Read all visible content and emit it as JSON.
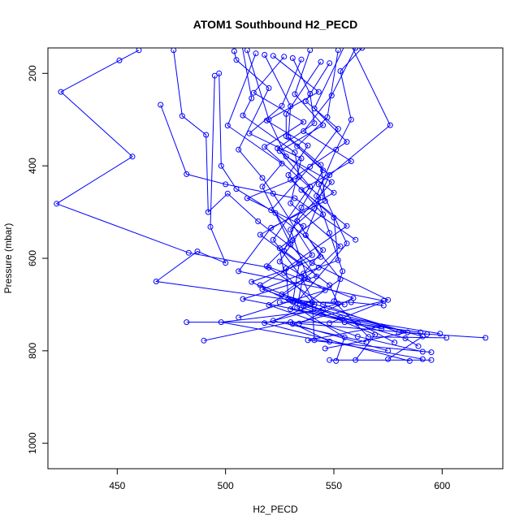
{
  "chart_data": {
    "type": "line",
    "title": "ATOM1 Southbound H2_PECD",
    "xlabel": "H2_PECD",
    "ylabel": "Pressure (mbar)",
    "xlim": [
      418,
      628
    ],
    "ylim": [
      1055,
      145
    ],
    "y_reversed": true,
    "x_ticks": [
      450,
      500,
      550,
      600
    ],
    "y_ticks": [
      200,
      400,
      600,
      800,
      1000
    ],
    "series_color": "#0000ff",
    "marker": "open-circle",
    "series": [
      {
        "name": "",
        "points": [
          [
            460,
            150
          ],
          [
            451,
            172
          ],
          [
            424,
            240
          ],
          [
            457,
            380
          ],
          [
            422,
            482
          ],
          [
            483,
            588
          ],
          [
            520,
            620
          ],
          [
            545,
            700
          ],
          [
            580,
            760
          ],
          [
            620,
            772
          ]
        ]
      },
      {
        "name": "",
        "points": [
          [
            470,
            268
          ],
          [
            482,
            418
          ],
          [
            500,
            440
          ],
          [
            532,
            470
          ],
          [
            560,
            560
          ]
        ]
      },
      {
        "name": "",
        "points": [
          [
            476,
            150
          ],
          [
            480,
            292
          ],
          [
            491,
            333
          ],
          [
            492,
            500
          ],
          [
            501,
            460
          ],
          [
            515,
            520
          ],
          [
            540,
            610
          ],
          [
            575,
            690
          ],
          [
            548,
            740
          ]
        ]
      },
      {
        "name": "",
        "points": [
          [
            495,
            205
          ],
          [
            493,
            532
          ],
          [
            500,
            610
          ],
          [
            487,
            585
          ],
          [
            468,
            650
          ],
          [
            530,
            690
          ],
          [
            555,
            700
          ]
        ]
      },
      {
        "name": "",
        "points": [
          [
            497,
            200
          ],
          [
            498,
            400
          ],
          [
            505,
            450
          ],
          [
            523,
            502
          ],
          [
            531,
            561
          ],
          [
            519,
            617
          ],
          [
            559,
            686
          ],
          [
            534,
            741
          ],
          [
            593,
            764
          ]
        ]
      },
      {
        "name": "",
        "points": [
          [
            504,
            152
          ],
          [
            505,
            171
          ],
          [
            520,
            232
          ],
          [
            506,
            365
          ],
          [
            517,
            426
          ],
          [
            522,
            460
          ],
          [
            540,
            593
          ],
          [
            516,
            658
          ],
          [
            553,
            728
          ],
          [
            599,
            763
          ]
        ]
      },
      {
        "name": "",
        "points": [
          [
            507,
            123
          ],
          [
            512,
            254
          ],
          [
            508,
            291
          ],
          [
            532,
            371
          ],
          [
            534,
            424
          ],
          [
            510,
            470
          ],
          [
            536,
            530
          ],
          [
            525,
            607
          ],
          [
            546,
            669
          ],
          [
            506,
            728
          ]
        ]
      },
      {
        "name": "",
        "points": [
          [
            510,
            150
          ],
          [
            520,
            300
          ],
          [
            528,
            380
          ],
          [
            549,
            435
          ],
          [
            533,
            519
          ],
          [
            544,
            597
          ],
          [
            512,
            651
          ],
          [
            535,
            707
          ],
          [
            583,
            773
          ],
          [
            589,
            790
          ]
        ]
      },
      {
        "name": "",
        "points": [
          [
            514,
            157
          ],
          [
            501,
            313
          ],
          [
            526,
            395
          ],
          [
            517,
            445
          ],
          [
            530,
            570
          ],
          [
            542,
            639
          ],
          [
            508,
            688
          ],
          [
            572,
            747
          ],
          [
            538,
            777
          ],
          [
            595,
            803
          ]
        ]
      },
      {
        "name": "",
        "points": [
          [
            518,
            160
          ],
          [
            530,
            271
          ],
          [
            529,
            338
          ],
          [
            544,
            398
          ],
          [
            546,
            476
          ],
          [
            521,
            534
          ],
          [
            506,
            628
          ],
          [
            573,
            692
          ],
          [
            531,
            742
          ],
          [
            575,
            800
          ]
        ]
      },
      {
        "name": "",
        "points": [
          [
            522,
            162
          ],
          [
            543,
            240
          ],
          [
            519,
            302
          ],
          [
            538,
            356
          ],
          [
            529,
            420
          ],
          [
            545,
            505
          ],
          [
            525,
            578
          ],
          [
            527,
            632
          ],
          [
            540,
            695
          ],
          [
            541,
            777
          ]
        ]
      },
      {
        "name": "",
        "points": [
          [
            527,
            164
          ],
          [
            513,
            242
          ],
          [
            536,
            305
          ],
          [
            518,
            359
          ],
          [
            544,
            468
          ],
          [
            537,
            550
          ],
          [
            553,
            645
          ],
          [
            536,
            702
          ],
          [
            569,
            765
          ],
          [
            560,
            820
          ]
        ]
      },
      {
        "name": "",
        "points": [
          [
            531,
            167
          ],
          [
            539,
            244
          ],
          [
            541,
            308
          ],
          [
            524,
            362
          ],
          [
            539,
            445
          ],
          [
            522,
            560
          ],
          [
            535,
            640
          ],
          [
            541,
            700
          ],
          [
            522,
            735
          ],
          [
            565,
            781
          ]
        ]
      },
      {
        "name": "",
        "points": [
          [
            535,
            170
          ],
          [
            526,
            270
          ],
          [
            511,
            330
          ],
          [
            535,
            384
          ],
          [
            530,
            481
          ],
          [
            553,
            574
          ],
          [
            543,
            620
          ],
          [
            526,
            678
          ],
          [
            584,
            760
          ],
          [
            546,
            795
          ]
        ]
      },
      {
        "name": "",
        "points": [
          [
            539,
            150
          ],
          [
            532,
            245
          ],
          [
            545,
            312
          ],
          [
            525,
            368
          ],
          [
            550,
            458
          ],
          [
            516,
            549
          ],
          [
            534,
            611
          ],
          [
            531,
            694
          ],
          [
            591,
            769
          ],
          [
            575,
            818
          ]
        ]
      },
      {
        "name": "",
        "points": [
          [
            544,
            175
          ],
          [
            528,
            288
          ],
          [
            528,
            336
          ],
          [
            545,
            410
          ],
          [
            535,
            490
          ],
          [
            527,
            584
          ],
          [
            548,
            658
          ],
          [
            552,
            698
          ],
          [
            518,
            740
          ],
          [
            585,
            822
          ]
        ]
      },
      {
        "name": "",
        "points": [
          [
            548,
            178
          ],
          [
            537,
            260
          ],
          [
            552,
            320
          ],
          [
            539,
            402
          ],
          [
            521,
            496
          ],
          [
            545,
            582
          ],
          [
            536,
            633
          ],
          [
            533,
            707
          ],
          [
            555,
            771
          ],
          [
            551,
            822
          ]
        ]
      },
      {
        "name": "",
        "points": [
          [
            552,
            150
          ],
          [
            547,
            295
          ],
          [
            533,
            358
          ],
          [
            548,
            420
          ],
          [
            541,
            492
          ],
          [
            530,
            538
          ],
          [
            538,
            645
          ],
          [
            520,
            701
          ],
          [
            561,
            769
          ],
          [
            591,
            802
          ]
        ]
      },
      {
        "name": "",
        "points": [
          [
            556,
            130
          ],
          [
            541,
            276
          ],
          [
            556,
            348
          ],
          [
            530,
            430
          ],
          [
            550,
            512
          ],
          [
            552,
            604
          ],
          [
            517,
            667
          ],
          [
            545,
            712
          ],
          [
            498,
            738
          ],
          [
            591,
            818
          ]
        ]
      },
      {
        "name": "",
        "points": [
          [
            560,
            145
          ],
          [
            549,
            248
          ],
          [
            536,
            325
          ],
          [
            558,
            390
          ],
          [
            535,
            452
          ],
          [
            556,
            530
          ],
          [
            528,
            622
          ],
          [
            529,
            688
          ],
          [
            561,
            740
          ],
          [
            578,
            782
          ]
        ]
      },
      {
        "name": "",
        "points": [
          [
            563,
            145
          ],
          [
            553,
            195
          ],
          [
            558,
            300
          ],
          [
            551,
            365
          ],
          [
            542,
            465
          ],
          [
            548,
            545
          ],
          [
            554,
            628
          ],
          [
            550,
            693
          ],
          [
            566,
            770
          ],
          [
            602,
            772
          ]
        ]
      },
      {
        "name": "",
        "points": [
          [
            556,
            120
          ],
          [
            576,
            312
          ],
          [
            543,
            440
          ],
          [
            556,
            568
          ],
          [
            530,
            710
          ],
          [
            572,
            752
          ]
        ]
      },
      {
        "name": "",
        "points": [
          [
            482,
            738
          ],
          [
            555,
            738
          ],
          [
            590,
            760
          ]
        ]
      },
      {
        "name": "",
        "points": [
          [
            490,
            778
          ],
          [
            530,
            738
          ],
          [
            548,
            780
          ]
        ]
      },
      {
        "name": "",
        "points": [
          [
            548,
            820
          ],
          [
            595,
            820
          ]
        ]
      },
      {
        "name": "",
        "points": [
          [
            525,
            695
          ],
          [
            558,
            695
          ],
          [
            573,
            702
          ]
        ]
      }
    ]
  }
}
